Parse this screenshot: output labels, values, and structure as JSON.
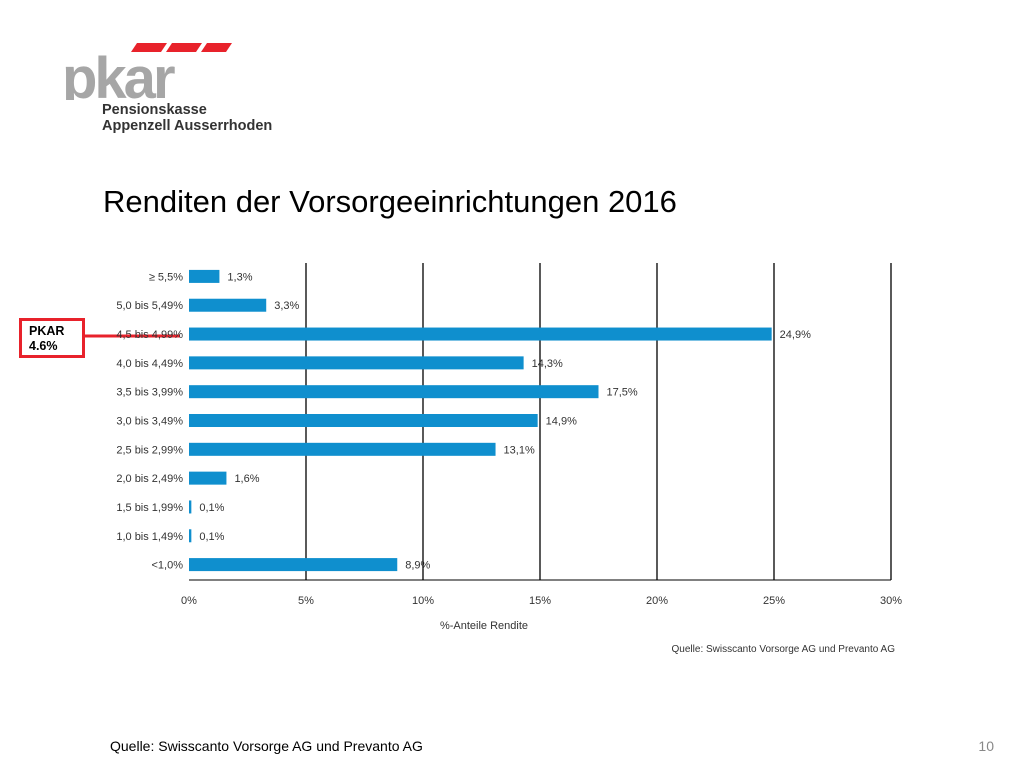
{
  "logo": {
    "wordmark": "pkar",
    "line1": "Pensionskasse",
    "line2": "Appenzell Ausserrhoden",
    "brand_gray": "#a6a6a6",
    "brand_red": "#e8222b"
  },
  "slide": {
    "title": "Renditen der Vorsorgeeinrichtungen 2016",
    "footer_source": "Quelle: Swisscanto Vorsorge AG und Prevanto AG",
    "page_number": "10"
  },
  "highlight": {
    "line1": "PKAR",
    "line2": "4.6%",
    "color": "#e8222b"
  },
  "chart_data": {
    "type": "bar",
    "orientation": "horizontal",
    "categories": [
      "≥ 5,5%",
      "5,0 bis 5,49%",
      "4,5 bis 4,99%",
      "4,0 bis 4,49%",
      "3,5 bis 3,99%",
      "3,0 bis 3,49%",
      "2,5 bis 2,99%",
      "2,0 bis 2,49%",
      "1,5 bis 1,99%",
      "1,0 bis 1,49%",
      "<1,0%"
    ],
    "values": [
      1.3,
      3.3,
      24.9,
      14.3,
      17.5,
      14.9,
      13.1,
      1.6,
      0.1,
      0.1,
      8.9
    ],
    "value_labels": [
      "1,3%",
      "3,3%",
      "24,9%",
      "14,3%",
      "17,5%",
      "14,9%",
      "13,1%",
      "1,6%",
      "0,1%",
      "0,1%",
      "8,9%"
    ],
    "xlim": [
      0,
      30
    ],
    "xticks": [
      "0%",
      "5%",
      "10%",
      "15%",
      "20%",
      "25%",
      "30%"
    ],
    "xlabel": "%-Anteile Rendite",
    "source": "Quelle: Swisscanto Vorsorge AG und Prevanto AG",
    "bar_color": "#0f8fce",
    "grid": true
  }
}
